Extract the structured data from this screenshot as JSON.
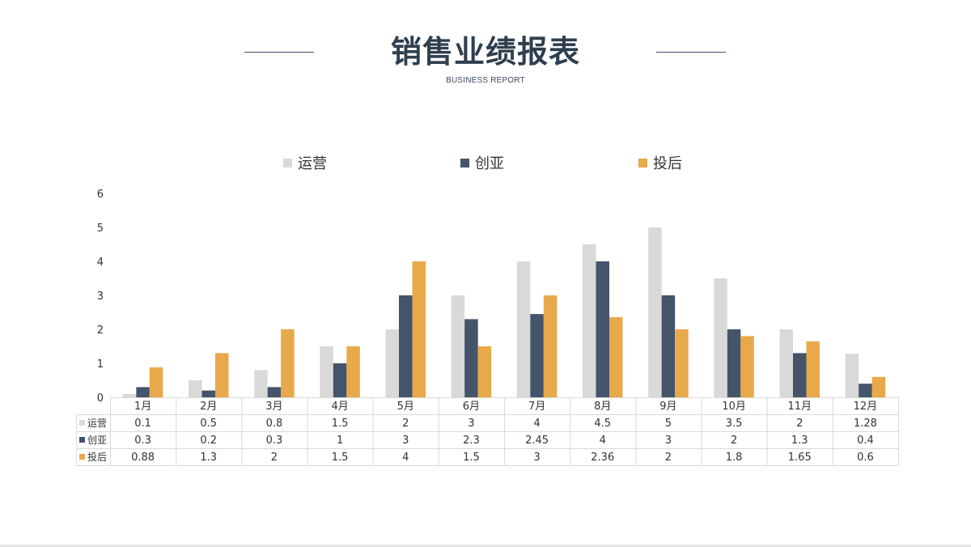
{
  "header": {
    "title": "销售业绩报表",
    "subtitle": "BUSINESS REPORT"
  },
  "colors": {
    "运营": "#d9d9d9",
    "创亚": "#44546a",
    "投后": "#e8a94a",
    "grid": "#d9d9d9",
    "text": "#333333"
  },
  "chart_data": {
    "type": "bar",
    "title": "",
    "xlabel": "",
    "ylabel": "",
    "ylim": [
      0,
      6
    ],
    "yticks": [
      0,
      1,
      2,
      3,
      4,
      5,
      6
    ],
    "grid": false,
    "legend": "top-center",
    "data_table": true,
    "categories": [
      "1月",
      "2月",
      "3月",
      "4月",
      "5月",
      "6月",
      "7月",
      "8月",
      "9月",
      "10月",
      "11月",
      "12月"
    ],
    "series": [
      {
        "name": "运营",
        "color": "#d9d9d9",
        "values": [
          0.1,
          0.5,
          0.8,
          1.5,
          2,
          3,
          4,
          4.5,
          5,
          3.5,
          2,
          1.28
        ]
      },
      {
        "name": "创亚",
        "color": "#44546a",
        "values": [
          0.3,
          0.2,
          0.3,
          1,
          3,
          2.3,
          2.45,
          4,
          3,
          2,
          1.3,
          0.4
        ]
      },
      {
        "name": "投后",
        "color": "#e8a94a",
        "values": [
          0.88,
          1.3,
          2,
          1.5,
          4,
          1.5,
          3,
          2.36,
          2,
          1.8,
          1.65,
          0.6
        ]
      }
    ]
  }
}
